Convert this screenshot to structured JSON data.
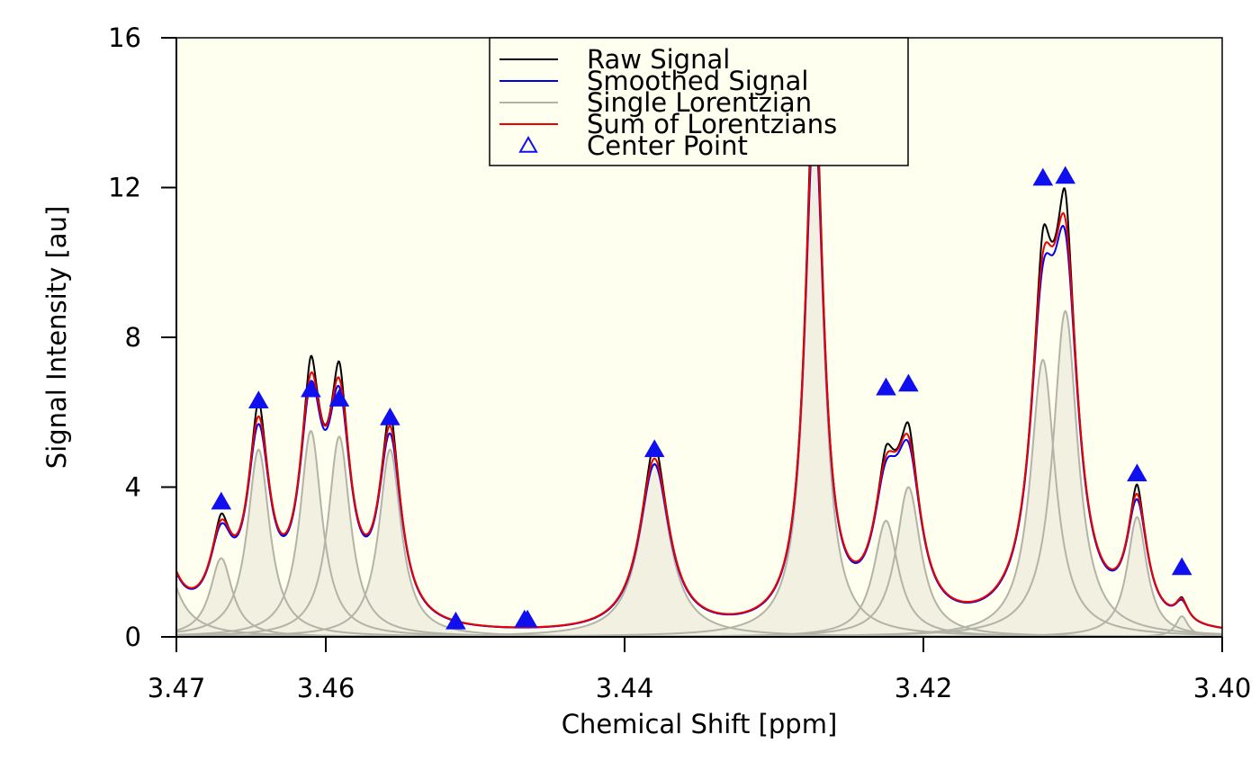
{
  "chart_data": {
    "type": "line",
    "title": "",
    "xlabel": "Chemical Shift [ppm]",
    "ylabel": "Signal Intensity [au]",
    "xlim": [
      3.47,
      3.4
    ],
    "ylim": [
      0,
      16
    ],
    "x_reversed": true,
    "x_ticks": [
      3.47,
      3.46,
      3.44,
      3.42,
      3.4
    ],
    "x_tick_labels": [
      "3.47",
      "3.46",
      "3.44",
      "3.42",
      "3.40"
    ],
    "y_ticks": [
      0,
      4,
      8,
      12,
      16
    ],
    "y_tick_labels": [
      "0",
      "4",
      "8",
      "12",
      "16"
    ],
    "grid": false,
    "legend_position": "top-center",
    "colors": {
      "plot_background": "#fffff0",
      "raw": "#000000",
      "smoothed": "#0000ee",
      "single": "#b3b3a8",
      "single_fill": "#f2f0e0",
      "sum": "#ee0000",
      "center": "#1010ee"
    },
    "legend": [
      {
        "key": "raw",
        "label": "Raw Signal",
        "symbol": "line"
      },
      {
        "key": "smoothed",
        "label": "Smoothed Signal",
        "symbol": "line"
      },
      {
        "key": "single",
        "label": "Single Lorentzian",
        "symbol": "line"
      },
      {
        "key": "sum",
        "label": "Sum of Lorentzians",
        "symbol": "line"
      },
      {
        "key": "center",
        "label": "Center Point",
        "symbol": "triangle"
      }
    ],
    "lorentzians": [
      {
        "x0": 3.4714,
        "amp": 3.5,
        "hwhm": 0.0011
      },
      {
        "x0": 3.467,
        "amp": 2.1,
        "hwhm": 0.0009
      },
      {
        "x0": 3.4645,
        "amp": 5.0,
        "hwhm": 0.0009
      },
      {
        "x0": 3.461,
        "amp": 5.5,
        "hwhm": 0.0009
      },
      {
        "x0": 3.4591,
        "amp": 5.35,
        "hwhm": 0.0009
      },
      {
        "x0": 3.4557,
        "amp": 5.0,
        "hwhm": 0.0009
      },
      {
        "x0": 3.438,
        "amp": 4.6,
        "hwhm": 0.0012
      },
      {
        "x0": 3.4273,
        "amp": 14.1,
        "hwhm": 0.00075
      },
      {
        "x0": 3.4225,
        "amp": 3.1,
        "hwhm": 0.001
      },
      {
        "x0": 3.421,
        "amp": 4.0,
        "hwhm": 0.001
      },
      {
        "x0": 3.412,
        "amp": 7.4,
        "hwhm": 0.001
      },
      {
        "x0": 3.4105,
        "amp": 8.7,
        "hwhm": 0.001
      },
      {
        "x0": 3.4057,
        "amp": 3.2,
        "hwhm": 0.0008
      },
      {
        "x0": 3.4027,
        "amp": 0.55,
        "hwhm": 0.0005
      }
    ],
    "center_points": [
      {
        "x": 3.467,
        "y": 3.6
      },
      {
        "x": 3.4645,
        "y": 6.3
      },
      {
        "x": 3.461,
        "y": 6.6
      },
      {
        "x": 3.4591,
        "y": 6.35
      },
      {
        "x": 3.4557,
        "y": 5.85
      },
      {
        "x": 3.4513,
        "y": 0.4
      },
      {
        "x": 3.4467,
        "y": 0.45
      },
      {
        "x": 3.4465,
        "y": 0.45
      },
      {
        "x": 3.438,
        "y": 5.0
      },
      {
        "x": 3.4273,
        "y": 15.0
      },
      {
        "x": 3.4225,
        "y": 6.65
      },
      {
        "x": 3.421,
        "y": 6.75
      },
      {
        "x": 3.412,
        "y": 12.25
      },
      {
        "x": 3.4105,
        "y": 12.3
      },
      {
        "x": 3.4057,
        "y": 4.35
      },
      {
        "x": 3.4027,
        "y": 1.85
      }
    ]
  }
}
